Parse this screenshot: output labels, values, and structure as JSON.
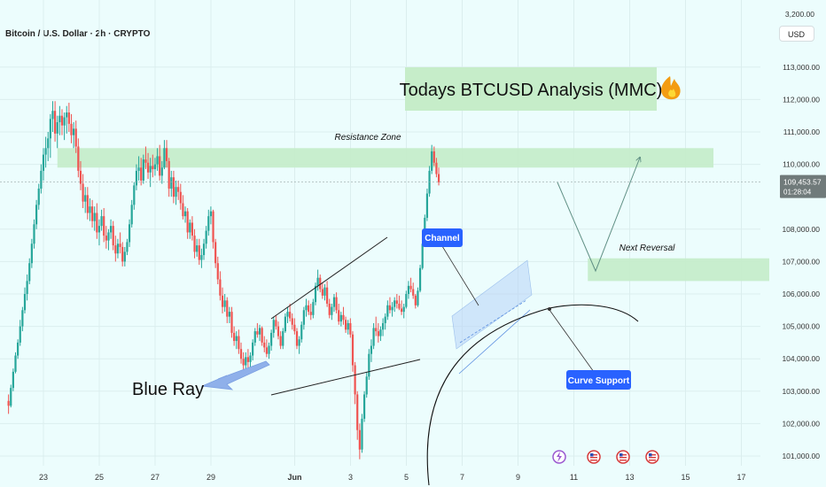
{
  "header": {
    "symbol_title": "Bitcoin / U.S. Dollar · 2h · CRYPTO",
    "currency_button": "USD"
  },
  "chart_data": {
    "type": "candlestick",
    "price_axis": {
      "ticks": [
        101000,
        102000,
        103000,
        104000,
        105000,
        106000,
        107000,
        108000,
        110000,
        111000,
        112000,
        113000
      ],
      "tick_labels": [
        "101,000.00",
        "102,000.00",
        "103,000.00",
        "104,000.00",
        "105,000.00",
        "106,000.00",
        "107,000.00",
        "108,000.00",
        "110,000.00",
        "111,000.00",
        "112,000.00",
        "113,000.00"
      ],
      "top_label": "3,200.00",
      "range": [
        100800,
        113800
      ]
    },
    "time_axis": {
      "labels": [
        "23",
        "25",
        "27",
        "29",
        "Jun",
        "3",
        "5",
        "7",
        "9",
        "11",
        "13",
        "15",
        "17"
      ],
      "day_offsets": [
        0,
        2,
        4,
        6,
        9,
        11,
        13,
        15,
        17,
        19,
        21,
        23,
        25
      ],
      "range_days": [
        -1.5,
        26.5
      ]
    },
    "current_price": {
      "value": 109453.57,
      "label": "109,453.57",
      "countdown": "01:28:04"
    },
    "colors": {
      "up": "#26a69a",
      "down": "#ef5350",
      "zone": "#c4ecc9",
      "arrow": "#5f8f84",
      "callout": "#2962ff"
    },
    "annotations": {
      "title": "Todays BTCUSD Analysis (MMC)",
      "resistance_zone": {
        "label": "Resistance Zone",
        "price_low": 109900,
        "price_high": 110500,
        "day_start": 0.5,
        "day_end": 24
      },
      "next_reversal_zone": {
        "label": "Next Reversal",
        "price_low": 106400,
        "price_high": 107100,
        "day_start": 19.5,
        "day_end": 26
      },
      "channel_callout": "Channel",
      "curve_support_callout": "Curve Support",
      "blue_ray_label": "Blue Ray",
      "event_icons": 4
    },
    "candles": [
      [
        102700,
        102900,
        102300,
        102550
      ],
      [
        102550,
        103200,
        102500,
        103100
      ],
      [
        103100,
        103700,
        103000,
        103600
      ],
      [
        103600,
        104200,
        103550,
        104100
      ],
      [
        104100,
        104600,
        104000,
        104500
      ],
      [
        104500,
        105200,
        104400,
        105000
      ],
      [
        105000,
        105600,
        104850,
        105500
      ],
      [
        105500,
        106200,
        105400,
        106000
      ],
      [
        106000,
        106600,
        105800,
        106400
      ],
      [
        106400,
        107100,
        106300,
        106950
      ],
      [
        106950,
        107700,
        106800,
        107550
      ],
      [
        107550,
        108300,
        107400,
        108150
      ],
      [
        108150,
        108900,
        108000,
        108750
      ],
      [
        108750,
        109400,
        108600,
        109250
      ],
      [
        109250,
        110000,
        109100,
        109800
      ],
      [
        109800,
        110500,
        109500,
        110300
      ],
      [
        110300,
        110850,
        109900,
        110500
      ],
      [
        110500,
        111000,
        110100,
        110800
      ],
      [
        110800,
        111550,
        110200,
        111400
      ],
      [
        111400,
        111950,
        111000,
        111650
      ],
      [
        111650,
        111950,
        110700,
        110950
      ],
      [
        110950,
        111500,
        110500,
        111300
      ],
      [
        111300,
        111800,
        110900,
        111500
      ],
      [
        111500,
        111700,
        110900,
        111200
      ],
      [
        111200,
        111600,
        110750,
        111450
      ],
      [
        111450,
        111800,
        110950,
        111600
      ],
      [
        111600,
        111900,
        111000,
        111250
      ],
      [
        111250,
        111550,
        110650,
        110900
      ],
      [
        110900,
        111300,
        110500,
        111100
      ],
      [
        111100,
        111350,
        110350,
        110550
      ],
      [
        110550,
        110800,
        109600,
        109800
      ],
      [
        109800,
        110100,
        109200,
        109400
      ],
      [
        109400,
        109700,
        108650,
        108850
      ],
      [
        108850,
        109300,
        108500,
        109050
      ],
      [
        109050,
        109300,
        108300,
        108500
      ],
      [
        108500,
        108950,
        108250,
        108700
      ],
      [
        108700,
        108900,
        108050,
        108250
      ],
      [
        108250,
        108700,
        107950,
        108500
      ],
      [
        108500,
        108800,
        107700,
        107900
      ],
      [
        107900,
        108300,
        107500,
        108100
      ],
      [
        108100,
        108600,
        107950,
        108400
      ],
      [
        108400,
        108650,
        107600,
        107800
      ],
      [
        107800,
        108100,
        107400,
        107650
      ],
      [
        107650,
        108000,
        107350,
        107900
      ],
      [
        107900,
        108300,
        107700,
        108100
      ],
      [
        108100,
        108250,
        107350,
        107500
      ],
      [
        107500,
        107800,
        107000,
        107250
      ],
      [
        107250,
        107700,
        107100,
        107550
      ],
      [
        107550,
        107900,
        107250,
        107450
      ],
      [
        107450,
        107600,
        106850,
        107000
      ],
      [
        107000,
        107450,
        106850,
        107300
      ],
      [
        107300,
        107700,
        107200,
        107600
      ],
      [
        107600,
        108300,
        107450,
        108150
      ],
      [
        108150,
        108900,
        108050,
        108750
      ],
      [
        108750,
        109450,
        108600,
        109350
      ],
      [
        109350,
        110000,
        109200,
        109800
      ],
      [
        109800,
        110250,
        109500,
        109900
      ],
      [
        109900,
        110200,
        109350,
        109500
      ],
      [
        109500,
        110300,
        109400,
        110150
      ],
      [
        110150,
        110550,
        109850,
        110050
      ],
      [
        110050,
        110350,
        109550,
        109750
      ],
      [
        109750,
        110200,
        109300,
        109950
      ],
      [
        109950,
        110300,
        109600,
        109850
      ],
      [
        109850,
        110200,
        109650,
        110000
      ],
      [
        110000,
        110500,
        109800,
        110250
      ],
      [
        110250,
        110600,
        109500,
        109650
      ],
      [
        109650,
        110100,
        109400,
        109900
      ],
      [
        109900,
        110750,
        109850,
        110500
      ],
      [
        110500,
        110750,
        109900,
        110100
      ],
      [
        110100,
        110200,
        109000,
        109250
      ],
      [
        109250,
        109800,
        109000,
        109600
      ],
      [
        109600,
        109800,
        108800,
        109000
      ],
      [
        109000,
        109500,
        108750,
        109300
      ],
      [
        109300,
        109500,
        108900,
        109150
      ],
      [
        109150,
        109400,
        108600,
        108800
      ],
      [
        108800,
        109050,
        108300,
        108400
      ],
      [
        108400,
        108700,
        108200,
        108550
      ],
      [
        108550,
        108650,
        107700,
        107900
      ],
      [
        107900,
        108300,
        107700,
        108200
      ],
      [
        108200,
        108400,
        107650,
        107800
      ],
      [
        107800,
        108000,
        107100,
        107300
      ],
      [
        107300,
        107700,
        107150,
        107500
      ],
      [
        107500,
        107700,
        106900,
        107050
      ],
      [
        107050,
        107400,
        106800,
        107200
      ],
      [
        107200,
        107700,
        107050,
        107550
      ],
      [
        107550,
        108100,
        107400,
        107950
      ],
      [
        107950,
        108600,
        107800,
        108400
      ],
      [
        108400,
        108700,
        108150,
        108550
      ],
      [
        108550,
        108600,
        107400,
        107600
      ],
      [
        107600,
        107700,
        106800,
        106950
      ],
      [
        106950,
        107150,
        106300,
        106450
      ],
      [
        106450,
        106700,
        105800,
        105950
      ],
      [
        105950,
        106200,
        105400,
        105600
      ],
      [
        105600,
        106000,
        105450,
        105800
      ],
      [
        105800,
        105900,
        105100,
        105300
      ],
      [
        105300,
        105600,
        105100,
        105450
      ],
      [
        105450,
        105600,
        104650,
        104800
      ],
      [
        104800,
        105000,
        104400,
        104550
      ],
      [
        104550,
        104850,
        104300,
        104700
      ],
      [
        104700,
        104900,
        104150,
        104300
      ],
      [
        104300,
        104500,
        103850,
        104000
      ],
      [
        104000,
        104200,
        103650,
        103800
      ],
      [
        103800,
        104200,
        103600,
        104050
      ],
      [
        104050,
        104300,
        103700,
        103900
      ],
      [
        103900,
        104200,
        103700,
        104100
      ],
      [
        104100,
        104600,
        103950,
        104500
      ],
      [
        104500,
        104950,
        104400,
        104850
      ],
      [
        104850,
        105100,
        104650,
        104750
      ],
      [
        104750,
        105050,
        104550,
        104950
      ],
      [
        104950,
        105000,
        104400,
        104500
      ],
      [
        104500,
        104700,
        104200,
        104350
      ],
      [
        104350,
        104600,
        104050,
        104150
      ],
      [
        104150,
        104500,
        104000,
        104400
      ],
      [
        104400,
        104900,
        104250,
        104800
      ],
      [
        104800,
        105300,
        104650,
        105200
      ],
      [
        105200,
        105350,
        104900,
        105000
      ],
      [
        105000,
        105150,
        104600,
        104700
      ],
      [
        104700,
        104850,
        104300,
        104400
      ],
      [
        104400,
        104950,
        104300,
        104850
      ],
      [
        104850,
        105400,
        104800,
        105300
      ],
      [
        105300,
        105600,
        105100,
        105450
      ],
      [
        105450,
        105700,
        105150,
        105250
      ],
      [
        105250,
        105400,
        104900,
        105050
      ],
      [
        105050,
        105250,
        104750,
        104850
      ],
      [
        104850,
        104950,
        104300,
        104400
      ],
      [
        104400,
        104700,
        104150,
        104600
      ],
      [
        104600,
        105150,
        104500,
        105050
      ],
      [
        105050,
        105600,
        104900,
        105500
      ],
      [
        105500,
        105850,
        105300,
        105650
      ],
      [
        105650,
        105800,
        105350,
        105450
      ],
      [
        105450,
        105700,
        105200,
        105350
      ],
      [
        105350,
        105850,
        105250,
        105750
      ],
      [
        105750,
        106350,
        105650,
        106250
      ],
      [
        106250,
        106750,
        106100,
        106500
      ],
      [
        106500,
        106600,
        106050,
        106150
      ],
      [
        106150,
        106350,
        105850,
        105950
      ],
      [
        105950,
        106300,
        105800,
        106200
      ],
      [
        106200,
        106400,
        105600,
        105700
      ],
      [
        105700,
        105850,
        105250,
        105350
      ],
      [
        105350,
        105700,
        105200,
        105600
      ],
      [
        105600,
        106000,
        105450,
        105900
      ],
      [
        105900,
        106050,
        105400,
        105500
      ],
      [
        105500,
        105700,
        105050,
        105150
      ],
      [
        105150,
        105450,
        105000,
        105350
      ],
      [
        105350,
        105600,
        105050,
        105200
      ],
      [
        105200,
        105300,
        104800,
        104900
      ],
      [
        104900,
        105200,
        104750,
        105100
      ],
      [
        105100,
        105250,
        104650,
        104750
      ],
      [
        104750,
        104850,
        103600,
        103800
      ],
      [
        103800,
        103900,
        102600,
        102900
      ],
      [
        102900,
        103000,
        101500,
        101800
      ],
      [
        101800,
        102000,
        100900,
        101200
      ],
      [
        101200,
        102300,
        101100,
        102150
      ],
      [
        102150,
        103000,
        102050,
        102900
      ],
      [
        102900,
        103600,
        102800,
        103450
      ],
      [
        103450,
        104300,
        103350,
        104150
      ],
      [
        104150,
        104600,
        103900,
        104400
      ],
      [
        104400,
        105100,
        104300,
        104950
      ],
      [
        104950,
        105300,
        104700,
        104850
      ],
      [
        104850,
        105100,
        104500,
        104700
      ],
      [
        104700,
        105000,
        104550,
        104900
      ],
      [
        104900,
        105250,
        104700,
        105100
      ],
      [
        105100,
        105400,
        104900,
        105300
      ],
      [
        105300,
        105800,
        105200,
        105650
      ],
      [
        105650,
        105900,
        105400,
        105500
      ],
      [
        105500,
        105750,
        105300,
        105600
      ],
      [
        105600,
        105900,
        105450,
        105800
      ],
      [
        105800,
        106000,
        105550,
        105700
      ],
      [
        105700,
        105950,
        105500,
        105550
      ],
      [
        105550,
        105800,
        105350,
        105450
      ],
      [
        105450,
        105700,
        105250,
        105600
      ],
      [
        105600,
        106100,
        105550,
        106000
      ],
      [
        106000,
        106400,
        105850,
        106250
      ],
      [
        106250,
        106500,
        106050,
        106150
      ],
      [
        106150,
        106350,
        105850,
        105950
      ],
      [
        105950,
        106000,
        105550,
        105650
      ],
      [
        105650,
        106200,
        105600,
        106100
      ],
      [
        106100,
        106900,
        106050,
        106800
      ],
      [
        106800,
        107700,
        106750,
        107550
      ],
      [
        107550,
        108450,
        107450,
        108350
      ],
      [
        108350,
        109250,
        108250,
        109100
      ],
      [
        109100,
        109950,
        109000,
        109800
      ],
      [
        109800,
        110600,
        109700,
        110400
      ],
      [
        110400,
        110550,
        109950,
        110050
      ],
      [
        110050,
        110200,
        109600,
        109700
      ],
      [
        109700,
        109900,
        109350,
        109450
      ]
    ]
  }
}
